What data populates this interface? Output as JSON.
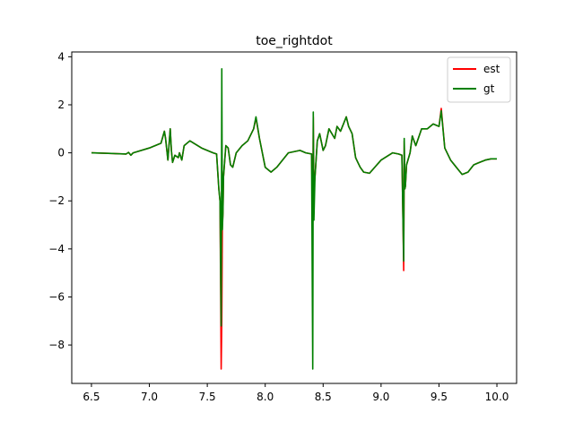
{
  "chart_data": {
    "type": "line",
    "title": "toe_rightdot",
    "xlabel": "",
    "ylabel": "",
    "xlim": [
      6.33,
      10.17
    ],
    "ylim": [
      -9.6,
      4.2
    ],
    "xticks": [
      6.5,
      7.0,
      7.5,
      8.0,
      8.5,
      9.0,
      9.5,
      10.0
    ],
    "xtick_labels": [
      "6.5",
      "7.0",
      "7.5",
      "8.0",
      "8.5",
      "9.0",
      "9.5",
      "10.0"
    ],
    "yticks": [
      4,
      2,
      0,
      -2,
      -4,
      -6,
      -8
    ],
    "ytick_labels": [
      "4",
      "2",
      "0",
      "−2",
      "−4",
      "−6",
      "−8"
    ],
    "grid": false,
    "legend": {
      "position": "top-right"
    },
    "series": [
      {
        "name": "est",
        "color": "#ff0000",
        "x": [
          6.5,
          6.8,
          6.82,
          6.84,
          6.86,
          7.0,
          7.1,
          7.13,
          7.14,
          7.16,
          7.18,
          7.19,
          7.2,
          7.22,
          7.25,
          7.26,
          7.28,
          7.3,
          7.35,
          7.45,
          7.55,
          7.58,
          7.6,
          7.61,
          7.62,
          7.625,
          7.63,
          7.635,
          7.64,
          7.66,
          7.68,
          7.7,
          7.72,
          7.75,
          7.8,
          7.85,
          7.9,
          7.92,
          7.95,
          8.0,
          8.05,
          8.1,
          8.2,
          8.3,
          8.35,
          8.4,
          8.41,
          8.415,
          8.42,
          8.43,
          8.45,
          8.47,
          8.5,
          8.52,
          8.55,
          8.6,
          8.62,
          8.65,
          8.7,
          8.72,
          8.75,
          8.78,
          8.8,
          8.82,
          8.85,
          8.9,
          9.0,
          9.1,
          9.15,
          9.18,
          9.19,
          9.195,
          9.2,
          9.205,
          9.21,
          9.22,
          9.25,
          9.27,
          9.3,
          9.35,
          9.4,
          9.45,
          9.5,
          9.52,
          9.55,
          9.6,
          9.65,
          9.7,
          9.75,
          9.8,
          9.85,
          9.9,
          9.95,
          10.0
        ],
        "y": [
          0.0,
          -0.05,
          0.02,
          -0.1,
          0.0,
          0.2,
          0.4,
          0.9,
          0.6,
          -0.3,
          1.0,
          0.1,
          -0.4,
          -0.1,
          -0.2,
          0.0,
          -0.3,
          0.3,
          0.5,
          0.2,
          0.0,
          -0.05,
          -1.5,
          -2.0,
          -9.0,
          -7.0,
          -3.0,
          -2.5,
          -1.0,
          0.3,
          0.2,
          -0.5,
          -0.6,
          0.0,
          0.3,
          0.5,
          1.0,
          1.45,
          0.6,
          -0.6,
          -0.8,
          -0.6,
          0.0,
          0.1,
          0.0,
          -0.05,
          -3.0,
          1.5,
          -1.5,
          -1.0,
          0.5,
          0.8,
          0.1,
          0.3,
          1.0,
          0.6,
          1.1,
          0.9,
          1.5,
          1.1,
          0.8,
          -0.2,
          -0.4,
          -0.6,
          -0.8,
          -0.85,
          -0.3,
          0.0,
          -0.05,
          -0.1,
          -3.0,
          -4.9,
          0.5,
          -1.5,
          -1.4,
          -0.5,
          0.0,
          0.7,
          0.3,
          1.0,
          1.0,
          1.2,
          1.1,
          1.85,
          0.2,
          -0.3,
          -0.6,
          -0.9,
          -0.8,
          -0.5,
          -0.4,
          -0.3,
          -0.25,
          -0.25
        ]
      },
      {
        "name": "gt",
        "color": "#008000",
        "x": [
          6.5,
          6.8,
          6.82,
          6.84,
          6.86,
          7.0,
          7.1,
          7.13,
          7.14,
          7.16,
          7.18,
          7.19,
          7.2,
          7.22,
          7.25,
          7.26,
          7.28,
          7.3,
          7.35,
          7.45,
          7.55,
          7.58,
          7.6,
          7.61,
          7.62,
          7.625,
          7.63,
          7.635,
          7.64,
          7.66,
          7.68,
          7.7,
          7.72,
          7.75,
          7.8,
          7.85,
          7.9,
          7.92,
          7.95,
          8.0,
          8.05,
          8.1,
          8.2,
          8.3,
          8.35,
          8.4,
          8.41,
          8.415,
          8.42,
          8.43,
          8.45,
          8.47,
          8.5,
          8.52,
          8.55,
          8.6,
          8.62,
          8.65,
          8.7,
          8.72,
          8.75,
          8.78,
          8.8,
          8.82,
          8.85,
          8.9,
          9.0,
          9.1,
          9.15,
          9.18,
          9.19,
          9.195,
          9.2,
          9.205,
          9.21,
          9.22,
          9.25,
          9.27,
          9.3,
          9.35,
          9.4,
          9.45,
          9.5,
          9.52,
          9.55,
          9.6,
          9.65,
          9.7,
          9.75,
          9.8,
          9.85,
          9.9,
          9.95,
          10.0
        ],
        "y": [
          0.0,
          -0.05,
          0.02,
          -0.1,
          0.0,
          0.2,
          0.4,
          0.9,
          0.6,
          -0.3,
          1.0,
          0.1,
          -0.4,
          -0.1,
          -0.2,
          0.0,
          -0.3,
          0.3,
          0.5,
          0.2,
          0.0,
          -0.05,
          -1.5,
          -2.0,
          -7.2,
          3.5,
          -3.2,
          -2.5,
          -1.0,
          0.3,
          0.2,
          -0.5,
          -0.6,
          0.0,
          0.3,
          0.5,
          1.0,
          1.5,
          0.6,
          -0.6,
          -0.8,
          -0.6,
          0.0,
          0.1,
          0.0,
          -0.05,
          -9.0,
          1.7,
          -2.8,
          -1.0,
          0.5,
          0.8,
          0.1,
          0.3,
          1.0,
          0.6,
          1.1,
          0.9,
          1.5,
          1.1,
          0.8,
          -0.2,
          -0.4,
          -0.6,
          -0.8,
          -0.85,
          -0.3,
          0.0,
          -0.05,
          -0.1,
          -3.0,
          -4.5,
          0.6,
          -1.5,
          -1.4,
          -0.5,
          0.0,
          0.7,
          0.3,
          1.0,
          1.0,
          1.2,
          1.1,
          1.75,
          0.2,
          -0.3,
          -0.6,
          -0.9,
          -0.8,
          -0.5,
          -0.4,
          -0.3,
          -0.25,
          -0.25
        ]
      }
    ]
  }
}
